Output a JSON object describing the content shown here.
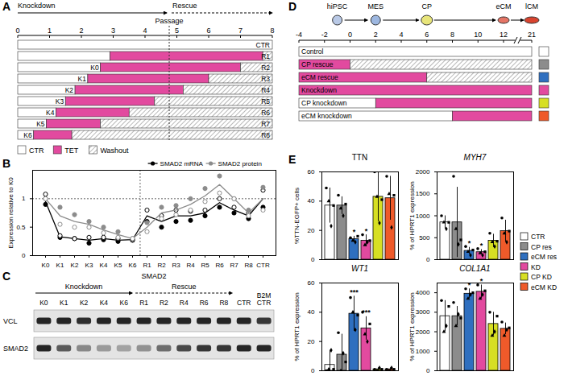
{
  "panel_A": {
    "letter": "A",
    "header": {
      "knockdown": "Knockdown",
      "rescue": "Rescue",
      "passage": "Passage"
    },
    "passage": 4.76,
    "xlim": [
      0,
      8
    ],
    "xticks": [
      0,
      1,
      2,
      3,
      4,
      5,
      6,
      7,
      8
    ],
    "legend": [
      "CTR",
      "TET",
      "Washout"
    ],
    "rows": [
      {
        "label": "CTR",
        "knockdown_label": null,
        "segments": [
          [
            "CTR",
            0,
            8
          ]
        ]
      },
      {
        "label": "R1",
        "knockdown_label": null,
        "segments": [
          [
            "CTR",
            0,
            2.9
          ],
          [
            "TET",
            2.9,
            7.7
          ],
          [
            "Washout",
            7.7,
            8
          ]
        ]
      },
      {
        "label": "R2",
        "knockdown_label": "K0",
        "segments": [
          [
            "CTR",
            0,
            2.6
          ],
          [
            "TET",
            2.6,
            7.0
          ],
          [
            "Washout",
            7.0,
            8
          ]
        ]
      },
      {
        "label": "R3",
        "knockdown_label": "K1",
        "segments": [
          [
            "CTR",
            0,
            2.2
          ],
          [
            "TET",
            2.2,
            6.0
          ],
          [
            "Washout",
            6.0,
            8
          ]
        ]
      },
      {
        "label": "R4",
        "knockdown_label": "K2",
        "segments": [
          [
            "CTR",
            0,
            1.8
          ],
          [
            "TET",
            1.8,
            5.2
          ],
          [
            "Washout",
            5.2,
            8
          ]
        ]
      },
      {
        "label": "R5",
        "knockdown_label": "K3",
        "segments": [
          [
            "CTR",
            0,
            1.5
          ],
          [
            "TET",
            1.5,
            4.3
          ],
          [
            "Washout",
            4.3,
            8
          ]
        ]
      },
      {
        "label": "R6",
        "knockdown_label": "K4",
        "segments": [
          [
            "CTR",
            0,
            1.2
          ],
          [
            "TET",
            1.2,
            3.5
          ],
          [
            "Washout",
            3.5,
            8
          ]
        ]
      },
      {
        "label": "R7",
        "knockdown_label": "K5",
        "segments": [
          [
            "CTR",
            0,
            0.9
          ],
          [
            "TET",
            0.9,
            2.6
          ],
          [
            "Washout",
            2.6,
            8
          ]
        ]
      },
      {
        "label": "R8",
        "knockdown_label": "K6",
        "segments": [
          [
            "CTR",
            0,
            0.5
          ],
          [
            "TET",
            0.5,
            1.7
          ],
          [
            "Washout",
            1.7,
            8
          ]
        ]
      }
    ]
  },
  "panel_C": {
    "letter": "C",
    "title": "SMAD2",
    "groups": [
      {
        "label": "Knockdown",
        "from": 0,
        "to": 4,
        "line_style": "solid"
      },
      {
        "label": "Rescue",
        "from": 5,
        "to": 9,
        "line_style": "dashed"
      }
    ],
    "lanes": [
      "K0",
      "K1",
      "K2",
      "K4",
      "K6",
      "R1",
      "R2",
      "R4",
      "R6",
      "R8",
      "CTR",
      "B2M CTR"
    ],
    "blots": [
      {
        "label": "VCL",
        "intensity": [
          1,
          1,
          0.95,
          1,
          1,
          1,
          1,
          1,
          1,
          1,
          1,
          0.9
        ]
      },
      {
        "label": "SMAD2",
        "intensity": [
          1,
          0.7,
          0.45,
          0.35,
          0.3,
          0.4,
          0.6,
          0.8,
          0.9,
          0.9,
          1,
          1
        ]
      }
    ]
  },
  "panel_D": {
    "letter": "D",
    "stages": [
      {
        "label": "hiPSC",
        "day": -1
      },
      {
        "label": "MES",
        "day": 2
      },
      {
        "label": "CP",
        "day": 6
      },
      {
        "label": "eCM",
        "day": 12
      },
      {
        "label": "lCM",
        "day": 21
      }
    ],
    "xlim": [
      -4,
      21
    ],
    "xticks": [
      -4,
      -2,
      0,
      2,
      4,
      6,
      8,
      10,
      12,
      21
    ],
    "axis_break": [
      12,
      21
    ],
    "rows": [
      {
        "label": "Control",
        "color": "#ffffff",
        "segments": [
          [
            "CTR",
            -4,
            21
          ]
        ]
      },
      {
        "label": "CP rescue",
        "color": "#8c8c8c",
        "segments": [
          [
            "TET",
            -4,
            0
          ],
          [
            "Washout",
            0,
            21
          ]
        ]
      },
      {
        "label": "eCM rescue",
        "color": "#2f6fbf",
        "segments": [
          [
            "TET",
            -4,
            6
          ],
          [
            "Washout",
            6,
            21
          ]
        ]
      },
      {
        "label": "Knockdown",
        "color": "#e24a9f",
        "segments": [
          [
            "TET",
            -4,
            21
          ]
        ]
      },
      {
        "label": "CP knockdown",
        "color": "#d7df23",
        "segments": [
          [
            "CTR",
            -4,
            2
          ],
          [
            "TET",
            2,
            21
          ]
        ]
      },
      {
        "label": "eCM knockdown",
        "color": "#ef5a2a",
        "segments": [
          [
            "CTR",
            -4,
            8
          ],
          [
            "TET",
            8,
            21
          ]
        ]
      }
    ]
  },
  "panel_E": {
    "letter": "E"
  },
  "chart_data": [
    {
      "type": "line",
      "panel": "B",
      "ylabel": "Expression relative to K0",
      "categories": [
        "K0",
        "K1",
        "K2",
        "K3",
        "K4",
        "K5",
        "K6",
        "R1",
        "R2",
        "R3",
        "R4",
        "R5",
        "R6",
        "R7",
        "R8",
        "CTR"
      ],
      "ylim": [
        0,
        1.5
      ],
      "yticks": [
        0,
        0.5,
        1
      ],
      "reference_y": 1,
      "passage_after": "K6",
      "legend": "top-right",
      "series": [
        {
          "name": "SMAD2 mRNA",
          "color": "#000000",
          "marker": "circle",
          "values": [
            0.95,
            0.33,
            0.3,
            0.27,
            0.3,
            0.27,
            0.28,
            0.7,
            0.6,
            0.7,
            0.7,
            0.75,
            0.93,
            0.8,
            0.7,
            1.0
          ],
          "replicates": [
            [
              0.9,
              0.32,
              0.3,
              0.22,
              0.28,
              0.25,
              0.27,
              0.6,
              0.5,
              0.6,
              0.62,
              0.7,
              0.85,
              0.75,
              0.65,
              0.85
            ],
            [
              1.08,
              0.35,
              0.3,
              0.32,
              0.32,
              0.3,
              0.28,
              0.8,
              0.7,
              0.8,
              0.78,
              0.8,
              1.0,
              0.85,
              0.75,
              1.15
            ]
          ]
        },
        {
          "name": "SMAD2 protein",
          "color": "#8c8c8c",
          "marker": "circle",
          "values": [
            1.0,
            0.7,
            0.6,
            0.55,
            0.45,
            0.37,
            0.3,
            0.5,
            0.75,
            0.8,
            0.9,
            1.05,
            1.25,
            1.0,
            0.75,
            1.0
          ],
          "replicates": [
            [
              1.0,
              0.85,
              0.72,
              0.6,
              0.5,
              0.42,
              0.3,
              0.58,
              0.85,
              0.88,
              1.0,
              1.18,
              1.4,
              1.0,
              0.8,
              1.2
            ],
            [
              1.0,
              0.55,
              0.5,
              0.5,
              0.4,
              0.32,
              0.3,
              0.42,
              0.65,
              0.72,
              0.8,
              0.95,
              1.1,
              1.0,
              0.7,
              0.8
            ]
          ]
        }
      ]
    },
    {
      "type": "bar",
      "title": "TTN",
      "ylabel": "%TTN-EGFP+ cells",
      "categories": [
        "CTR",
        "CP res",
        "eCM res",
        "KD",
        "CP KD",
        "eCM KD"
      ],
      "colors": [
        "#ffffff",
        "#8c8c8c",
        "#2f6fbf",
        "#e24a9f",
        "#d7df23",
        "#ef5a2a"
      ],
      "values": [
        37,
        37,
        14,
        13,
        43,
        42
      ],
      "error": [
        12,
        6,
        2,
        4,
        17,
        15
      ],
      "points": [
        [
          49,
          40,
          23,
          37
        ],
        [
          44,
          35,
          30,
          38
        ],
        [
          15,
          13,
          12,
          16
        ],
        [
          17,
          10,
          12,
          13
        ],
        [
          60,
          43,
          25,
          41
        ],
        [
          57,
          45,
          22,
          44
        ]
      ],
      "markers": [
        "circle",
        "triangle",
        "diamond",
        "square"
      ],
      "significance": [
        null,
        null,
        "*",
        "*",
        null,
        null
      ],
      "ylim": [
        0,
        60
      ],
      "yticks": [
        0,
        20,
        40,
        60
      ],
      "tick_labels": "y",
      "legend": "right"
    },
    {
      "type": "bar",
      "title": "MYH7",
      "ylabel": "% of HPRT1 expression",
      "categories": [
        "CTR",
        "CP res",
        "eCM res",
        "KD",
        "CP KD",
        "eCM KD"
      ],
      "colors": [
        "#ffffff",
        "#8c8c8c",
        "#2f6fbf",
        "#e24a9f",
        "#d7df23",
        "#ef5a2a"
      ],
      "values": [
        850,
        850,
        200,
        170,
        430,
        650
      ],
      "error": [
        150,
        800,
        80,
        60,
        150,
        250
      ],
      "points": [
        [
          1000,
          850,
          700,
          850
        ],
        [
          1900,
          700,
          350,
          450
        ],
        [
          300,
          180,
          100,
          220
        ],
        [
          250,
          150,
          100,
          180
        ],
        [
          600,
          400,
          300,
          420
        ],
        [
          950,
          600,
          400,
          650
        ]
      ],
      "markers": [
        "circle",
        "triangle",
        "diamond",
        "square"
      ],
      "significance": [
        null,
        null,
        "*",
        "*",
        null,
        null
      ],
      "ylim": [
        0,
        2000
      ],
      "yticks": [
        0,
        500,
        1000,
        1500,
        2000
      ],
      "tick_labels": "y"
    },
    {
      "type": "bar",
      "title": "WT1",
      "ylabel": "% of HPRT1 expression",
      "categories": [
        "CTR",
        "CP res",
        "eCM res",
        "KD",
        "CP KD",
        "eCM KD"
      ],
      "colors": [
        "#ffffff",
        "#8c8c8c",
        "#2f6fbf",
        "#e24a9f",
        "#d7df23",
        "#ef5a2a"
      ],
      "values": [
        4,
        11,
        39,
        29,
        1,
        1
      ],
      "error": [
        10,
        14,
        12,
        8,
        1,
        1
      ],
      "points": [
        [
          0,
          1,
          14,
          1
        ],
        [
          26,
          0,
          12,
          6
        ],
        [
          50,
          40,
          28,
          38
        ],
        [
          40,
          25,
          20,
          32
        ],
        [
          1,
          0,
          2,
          1
        ],
        [
          1,
          0,
          2,
          1
        ]
      ],
      "markers": [
        "circle",
        "triangle",
        "diamond",
        "square"
      ],
      "significance": [
        null,
        null,
        "***",
        "***",
        null,
        null
      ],
      "ylim": [
        0,
        60
      ],
      "yticks": [
        0,
        20,
        40,
        60
      ],
      "tick_labels": "y"
    },
    {
      "type": "bar",
      "title": "COL1A1",
      "ylabel": "% of HPRT1 expression",
      "categories": [
        "CTR",
        "CP res",
        "eCM res",
        "KD",
        "CP KD",
        "eCM KD"
      ],
      "colors": [
        "#ffffff",
        "#8c8c8c",
        "#2f6fbf",
        "#e24a9f",
        "#d7df23",
        "#ef5a2a"
      ],
      "values": [
        2800,
        2800,
        3950,
        4050,
        2400,
        2150
      ],
      "error": [
        800,
        500,
        250,
        350,
        600,
        300
      ],
      "points": [
        [
          3600,
          2000,
          2300,
          3300
        ],
        [
          3500,
          2300,
          2900,
          2700
        ],
        [
          4200,
          3700,
          3900,
          4000
        ],
        [
          4400,
          3700,
          3900,
          4100
        ],
        [
          3000,
          1800,
          2000,
          2800
        ],
        [
          2500,
          1800,
          2100,
          2200
        ]
      ],
      "markers": [
        "circle",
        "triangle",
        "diamond",
        "square"
      ],
      "significance": [
        null,
        null,
        "*",
        "*",
        null,
        null
      ],
      "ylim": [
        0,
        4500
      ],
      "yticks": [
        0,
        1000,
        2000,
        3000,
        4000
      ],
      "tick_labels": "y"
    }
  ]
}
